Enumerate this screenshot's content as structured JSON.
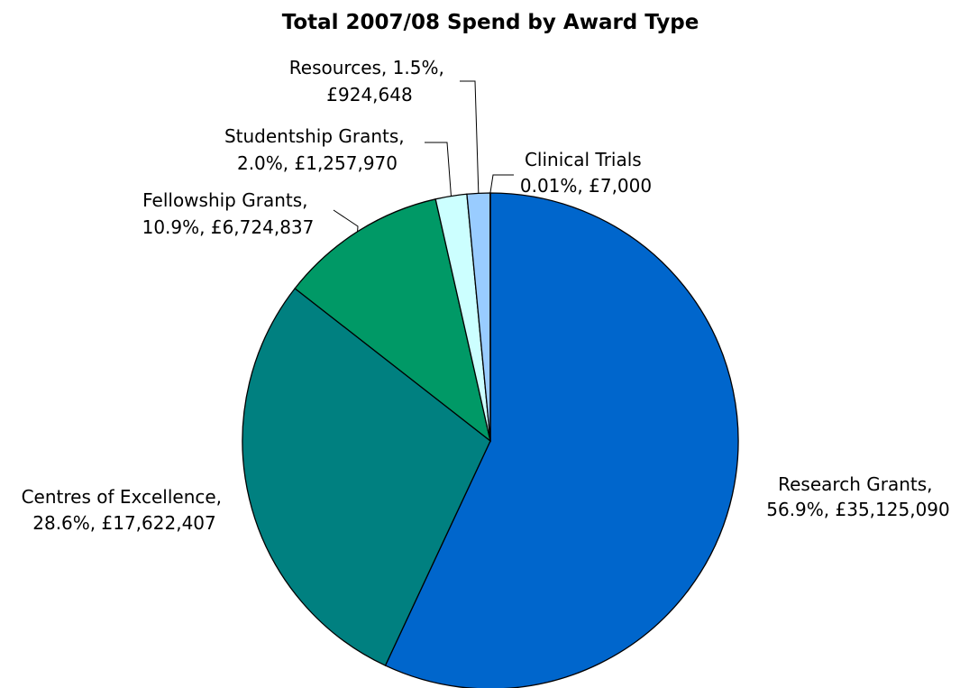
{
  "chart_data": {
    "type": "pie",
    "title": "Total 2007/08 Spend by Award Type",
    "slices": [
      {
        "name": "Research Grants",
        "percent_label": "56.9%",
        "amount": "£35,125,090",
        "value": 35125090,
        "color": "#0066CC"
      },
      {
        "name": "Centres of Excellence",
        "percent_label": "28.6%",
        "amount": "£17,622,407",
        "value": 17622407,
        "color": "#008080"
      },
      {
        "name": "Fellowship Grants",
        "percent_label": "10.9%",
        "amount": "£6,724,837",
        "value": 6724837,
        "color": "#009966"
      },
      {
        "name": "Studentship Grants",
        "percent_label": "2.0%",
        "amount": "£1,257,970",
        "value": 1257970,
        "color": "#CCFFFF"
      },
      {
        "name": "Resources",
        "percent_label": "1.5%",
        "amount": "£924,648",
        "value": 924648,
        "color": "#99CCFF"
      },
      {
        "name": "Clinical Trials",
        "percent_label": "0.01%",
        "amount": "£7,000",
        "value": 7000,
        "color": "#3366FF"
      }
    ],
    "labels": [
      {
        "line1": "Research Grants,",
        "line2": "56.9%, £35,125,090"
      },
      {
        "line1": "Centres of Excellence,",
        "line2": "28.6%, £17,622,407"
      },
      {
        "line1": "Fellowship Grants,",
        "line2": "10.9%, £6,724,837"
      },
      {
        "line1": "Studentship Grants,",
        "line2": "2.0%, £1,257,970"
      },
      {
        "line1": "Resources, 1.5%,",
        "line2": "£924,648"
      },
      {
        "line1": "Clinical Trials",
        "line2": "0.01%, £7,000"
      }
    ]
  }
}
